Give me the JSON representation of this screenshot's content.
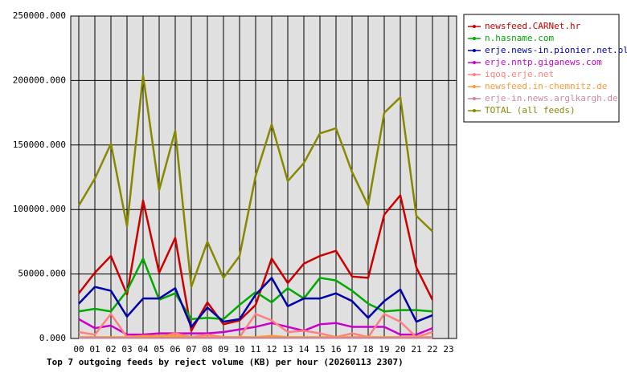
{
  "chart_data": {
    "type": "line",
    "title": "Top 7 outgoing feeds by reject volume (KB) per hour (20260113 2307)",
    "categories": [
      "00",
      "01",
      "02",
      "03",
      "04",
      "05",
      "06",
      "07",
      "08",
      "09",
      "10",
      "11",
      "12",
      "13",
      "14",
      "15",
      "16",
      "17",
      "18",
      "19",
      "20",
      "21",
      "22",
      "23"
    ],
    "ylim": [
      0,
      250000
    ],
    "yticks": [
      {
        "value": 0,
        "label": "0.000"
      },
      {
        "value": 50000,
        "label": "50000.000"
      },
      {
        "value": 100000,
        "label": "100000.000"
      },
      {
        "value": 150000,
        "label": "150000.000"
      },
      {
        "value": 200000,
        "label": "200000.000"
      },
      {
        "value": 250000,
        "label": "250000.000"
      }
    ],
    "grid": true,
    "series": [
      {
        "name": "newsfeed.CARNet.hr",
        "color": "#cc0000",
        "values": [
          35000,
          51000,
          64000,
          34000,
          107000,
          51000,
          78000,
          6000,
          28000,
          11000,
          14000,
          26000,
          62000,
          43000,
          58000,
          64000,
          68000,
          48000,
          47000,
          96000,
          111000,
          55000,
          30000,
          null
        ]
      },
      {
        "name": "n.hasname.com",
        "color": "#00aa00",
        "values": [
          21000,
          23000,
          21000,
          37000,
          62000,
          30000,
          35000,
          15000,
          16000,
          15000,
          26000,
          36000,
          28000,
          39000,
          31000,
          47000,
          45000,
          37000,
          27000,
          21000,
          22000,
          22000,
          21000,
          null
        ]
      },
      {
        "name": "erje.news-in.pionier.net.pl",
        "color": "#0000aa",
        "values": [
          27000,
          40000,
          37000,
          17000,
          31000,
          31000,
          39000,
          9000,
          24000,
          13000,
          15000,
          34000,
          47000,
          25000,
          31000,
          31000,
          35000,
          29000,
          16000,
          29000,
          38000,
          13000,
          18000,
          null
        ]
      },
      {
        "name": "erje.nntp.giganews.com",
        "color": "#cc00cc",
        "values": [
          15000,
          8000,
          10000,
          3000,
          3000,
          4000,
          4000,
          4000,
          4000,
          5000,
          7000,
          9000,
          12000,
          9000,
          6000,
          11000,
          12000,
          9000,
          9000,
          9000,
          3000,
          3000,
          8000,
          null
        ]
      },
      {
        "name": "iqoq.erje.net",
        "color": "#ff8080",
        "values": [
          5000,
          3000,
          19000,
          1000,
          1000,
          1000,
          4000,
          1000,
          3000,
          1000,
          1000,
          19000,
          14000,
          5000,
          6000,
          4000,
          1000,
          4000,
          1000,
          19000,
          13000,
          1000,
          5000,
          null
        ]
      },
      {
        "name": "newsfeed.in-chemnitz.de",
        "color": "#ff9933",
        "values": [
          1000,
          1000,
          1000,
          1000,
          2000,
          2000,
          2000,
          1000,
          1000,
          1000,
          1000,
          1000,
          2000,
          1000,
          1000,
          1000,
          1000,
          1000,
          1000,
          1000,
          1000,
          1000,
          1000,
          null
        ]
      },
      {
        "name": "erje-in.news.arglkargh.de",
        "color": "#cc8899",
        "values": [
          500,
          500,
          500,
          500,
          500,
          500,
          500,
          500,
          500,
          500,
          500,
          500,
          500,
          500,
          500,
          500,
          500,
          500,
          500,
          500,
          500,
          500,
          500,
          null
        ]
      },
      {
        "name": "TOTAL (all feeds)",
        "color": "#888800",
        "values": [
          103000,
          124000,
          151000,
          87000,
          204000,
          115000,
          161000,
          40000,
          75000,
          47000,
          64000,
          126000,
          166000,
          122000,
          136000,
          159000,
          163000,
          129000,
          103000,
          175000,
          187000,
          95000,
          83000,
          null
        ]
      }
    ]
  }
}
